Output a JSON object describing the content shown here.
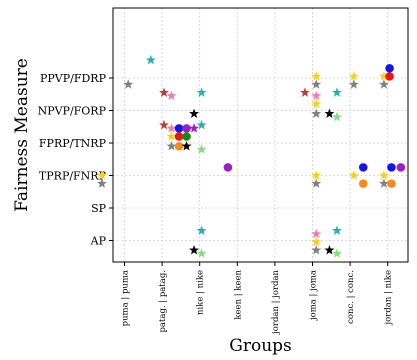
{
  "chart_data": {
    "type": "scatter",
    "xlabel": "Groups",
    "ylabel": "Fairness Measure",
    "x_categories": [
      "puma | puma",
      "patag. | patag.",
      "nike | nike",
      "keen | keen",
      "jordan | jordan",
      "joma | joma",
      "conc. | conc.",
      "jordan | nike"
    ],
    "y_categories": [
      "AP",
      "SP",
      "TPRP/FNRP",
      "FPRP/TNRP",
      "NPVP/FORP",
      "PPVP/FDRP"
    ],
    "grid": true,
    "colors": {
      "teal": "#2ab0b0",
      "gray": "#808080",
      "brown": "#b5403a",
      "pink": "#f57ab4",
      "gold": "#f5d21a",
      "black": "#000000",
      "lightgreen": "#7ee07e",
      "blue": "#1414ee",
      "red": "#ee1414",
      "green": "#148c14",
      "purple": "#9b1ec8",
      "orange": "#f58c1a"
    },
    "points": [
      {
        "x": 0.7,
        "y": 5.55,
        "marker": "star",
        "color": "teal"
      },
      {
        "x": 0.1,
        "y": 4.8,
        "marker": "star",
        "color": "gray"
      },
      {
        "x": 5.1,
        "y": 5.05,
        "marker": "star",
        "color": "gold"
      },
      {
        "x": 5.1,
        "y": 4.8,
        "marker": "star",
        "color": "gray"
      },
      {
        "x": 6.1,
        "y": 5.05,
        "marker": "star",
        "color": "gold"
      },
      {
        "x": 6.1,
        "y": 4.8,
        "marker": "star",
        "color": "gray"
      },
      {
        "x": 6.9,
        "y": 5.05,
        "marker": "star",
        "color": "gold"
      },
      {
        "x": 6.9,
        "y": 4.8,
        "marker": "star",
        "color": "gray"
      },
      {
        "x": 7.05,
        "y": 5.3,
        "marker": "circle",
        "color": "blue"
      },
      {
        "x": 7.05,
        "y": 5.05,
        "marker": "circle",
        "color": "red"
      },
      {
        "x": 1.05,
        "y": 4.55,
        "marker": "star",
        "color": "brown"
      },
      {
        "x": 1.25,
        "y": 4.45,
        "marker": "star",
        "color": "pink"
      },
      {
        "x": 2.05,
        "y": 4.55,
        "marker": "star",
        "color": "teal"
      },
      {
        "x": 4.8,
        "y": 4.55,
        "marker": "star",
        "color": "brown"
      },
      {
        "x": 5.1,
        "y": 4.45,
        "marker": "star",
        "color": "pink"
      },
      {
        "x": 5.65,
        "y": 4.55,
        "marker": "star",
        "color": "teal"
      },
      {
        "x": 5.1,
        "y": 4.2,
        "marker": "star",
        "color": "gold"
      },
      {
        "x": 1.85,
        "y": 3.9,
        "marker": "star",
        "color": "black"
      },
      {
        "x": 5.1,
        "y": 3.9,
        "marker": "star",
        "color": "gray"
      },
      {
        "x": 5.45,
        "y": 3.9,
        "marker": "star",
        "color": "black"
      },
      {
        "x": 5.65,
        "y": 3.8,
        "marker": "star",
        "color": "lightgreen"
      },
      {
        "x": 1.05,
        "y": 3.55,
        "marker": "star",
        "color": "brown"
      },
      {
        "x": 1.25,
        "y": 3.45,
        "marker": "star",
        "color": "pink"
      },
      {
        "x": 1.45,
        "y": 3.45,
        "marker": "circle",
        "color": "blue"
      },
      {
        "x": 1.65,
        "y": 3.45,
        "marker": "circle",
        "color": "purple"
      },
      {
        "x": 1.85,
        "y": 3.45,
        "marker": "star",
        "color": "purple"
      },
      {
        "x": 2.05,
        "y": 3.55,
        "marker": "star",
        "color": "teal"
      },
      {
        "x": 1.25,
        "y": 3.2,
        "marker": "star",
        "color": "gold"
      },
      {
        "x": 1.45,
        "y": 3.2,
        "marker": "circle",
        "color": "red"
      },
      {
        "x": 1.65,
        "y": 3.2,
        "marker": "circle",
        "color": "green"
      },
      {
        "x": 1.25,
        "y": 2.9,
        "marker": "star",
        "color": "gray"
      },
      {
        "x": 1.45,
        "y": 2.9,
        "marker": "circle",
        "color": "orange"
      },
      {
        "x": 1.65,
        "y": 2.9,
        "marker": "star",
        "color": "black"
      },
      {
        "x": 2.05,
        "y": 2.8,
        "marker": "star",
        "color": "lightgreen"
      },
      {
        "x": 2.75,
        "y": 2.25,
        "marker": "circle",
        "color": "purple"
      },
      {
        "x": 6.35,
        "y": 2.25,
        "marker": "circle",
        "color": "blue"
      },
      {
        "x": 7.1,
        "y": 2.25,
        "marker": "circle",
        "color": "blue"
      },
      {
        "x": 7.35,
        "y": 2.25,
        "marker": "circle",
        "color": "purple"
      },
      {
        "x": -0.6,
        "y": 2.0,
        "marker": "star",
        "color": "gold"
      },
      {
        "x": -0.6,
        "y": 1.75,
        "marker": "star",
        "color": "gray"
      },
      {
        "x": 5.1,
        "y": 2.0,
        "marker": "star",
        "color": "gold"
      },
      {
        "x": 5.1,
        "y": 1.75,
        "marker": "star",
        "color": "gray"
      },
      {
        "x": 6.1,
        "y": 2.0,
        "marker": "star",
        "color": "gold"
      },
      {
        "x": 6.35,
        "y": 1.75,
        "marker": "circle",
        "color": "orange"
      },
      {
        "x": 6.9,
        "y": 2.0,
        "marker": "star",
        "color": "gold"
      },
      {
        "x": 6.9,
        "y": 1.75,
        "marker": "star",
        "color": "gray"
      },
      {
        "x": 7.1,
        "y": 1.75,
        "marker": "circle",
        "color": "orange"
      },
      {
        "x": 2.05,
        "y": 0.3,
        "marker": "star",
        "color": "teal"
      },
      {
        "x": 5.65,
        "y": 0.3,
        "marker": "star",
        "color": "teal"
      },
      {
        "x": 5.1,
        "y": 0.2,
        "marker": "star",
        "color": "pink"
      },
      {
        "x": 5.1,
        "y": -0.05,
        "marker": "star",
        "color": "gold"
      },
      {
        "x": 5.1,
        "y": -0.3,
        "marker": "star",
        "color": "gray"
      },
      {
        "x": 1.85,
        "y": -0.3,
        "marker": "star",
        "color": "black"
      },
      {
        "x": 2.05,
        "y": -0.4,
        "marker": "star",
        "color": "lightgreen"
      },
      {
        "x": 5.45,
        "y": -0.3,
        "marker": "star",
        "color": "black"
      },
      {
        "x": 5.65,
        "y": -0.4,
        "marker": "star",
        "color": "lightgreen"
      }
    ]
  }
}
